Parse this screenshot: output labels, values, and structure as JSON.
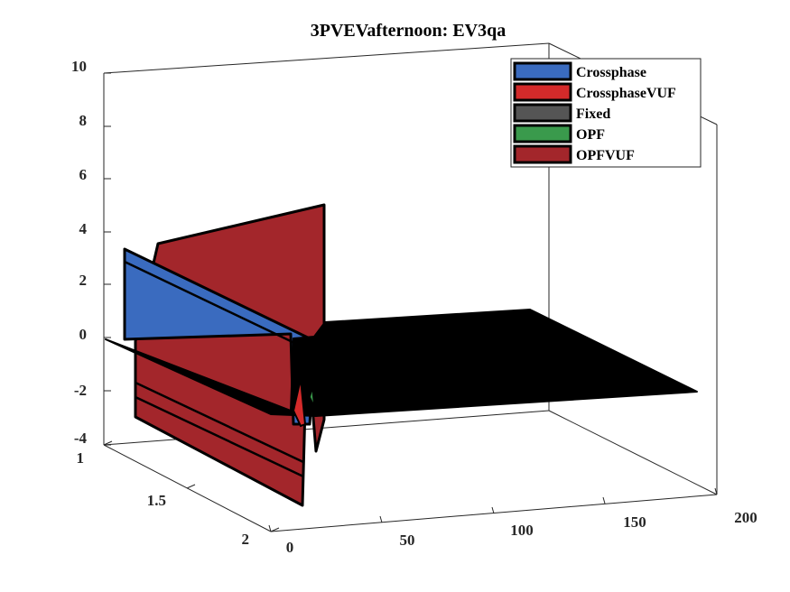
{
  "chart_data": {
    "type": "3d-surface",
    "title": "3PVEVafternoon: EV3qa",
    "xlabel": "",
    "ylabel": "",
    "zlabel": "",
    "xlim": [
      0,
      200
    ],
    "ylim": [
      1,
      2
    ],
    "zlim": [
      -4,
      10
    ],
    "x_ticks": [
      "0",
      "50",
      "100",
      "150",
      "200"
    ],
    "y_ticks": [
      "1",
      "1.5",
      "2"
    ],
    "z_ticks": [
      "-4",
      "-2",
      "0",
      "2",
      "4",
      "6",
      "8",
      "10"
    ],
    "legend_position": "top-right",
    "grid": false,
    "series": [
      {
        "name": "Crossphase",
        "color": "#3a6bbf"
      },
      {
        "name": "CrossphaseVUF",
        "color": "#d42a2a"
      },
      {
        "name": "Fixed",
        "color": "#555555"
      },
      {
        "name": "OPF",
        "color": "#3a9a4c"
      },
      {
        "name": "OPFVUF",
        "color": "#a3262b"
      }
    ]
  }
}
